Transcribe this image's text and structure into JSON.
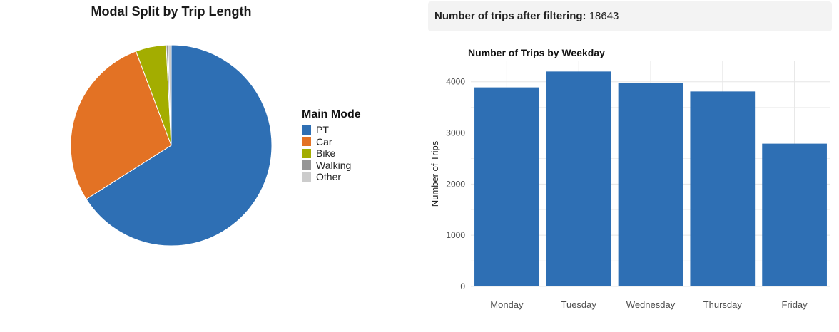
{
  "filter": {
    "label": "Number of trips after filtering:",
    "value": "18643"
  },
  "chart_data": [
    {
      "type": "pie",
      "title": "Modal Split by Trip Length",
      "legend_title": "Main Mode",
      "legend_position": "right",
      "categories": [
        "PT",
        "Car",
        "Bike",
        "Walking",
        "Other"
      ],
      "values": [
        66.0,
        28.3,
        4.9,
        0.3,
        0.5
      ],
      "colors": [
        "#2e6fb4",
        "#e37224",
        "#a3ad00",
        "#969696",
        "#cccccc"
      ]
    },
    {
      "type": "bar",
      "title": "Number of Trips by Weekday",
      "xlabel": "",
      "ylabel": "Number of Trips",
      "categories": [
        "Monday",
        "Tuesday",
        "Wednesday",
        "Thursday",
        "Friday"
      ],
      "values": [
        3890,
        4200,
        3970,
        3810,
        2790
      ],
      "ylim": [
        0,
        4400
      ],
      "yticks": [
        "0",
        "1000",
        "2000",
        "3000",
        "4000"
      ],
      "grid": true,
      "bar_color": "#2e6fb4"
    }
  ]
}
